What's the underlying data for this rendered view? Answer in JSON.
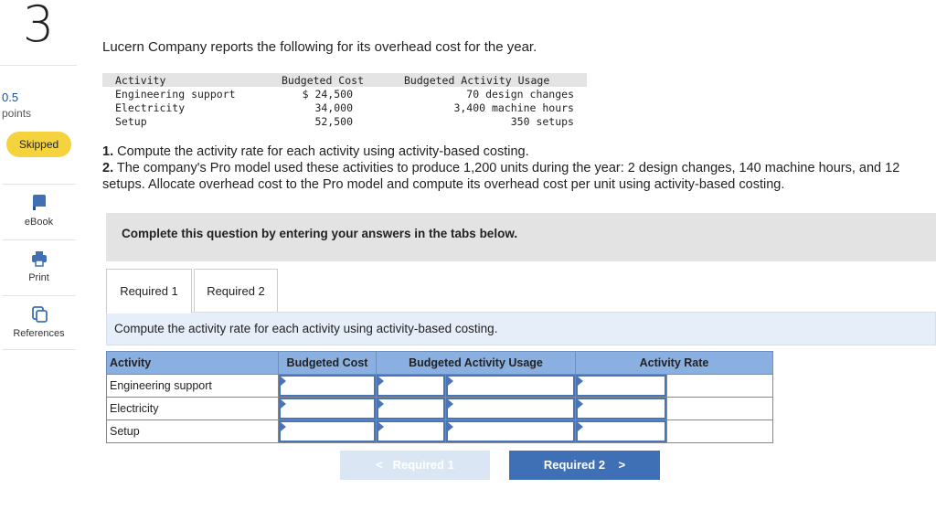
{
  "question": {
    "number": "3",
    "points_value": "0.5",
    "points_label": "points",
    "status": "Skipped"
  },
  "rail": [
    {
      "label": "eBook",
      "icon": "ebook-icon"
    },
    {
      "label": "Print",
      "icon": "print-icon"
    },
    {
      "label": "References",
      "icon": "references-icon"
    }
  ],
  "intro": "Lucern Company reports the following for its overhead cost for the year.",
  "source_table": {
    "headers": [
      "Activity",
      "Budgeted Cost",
      "Budgeted Activity Usage"
    ],
    "rows": [
      [
        "Engineering support",
        "$ 24,500",
        "70 design changes"
      ],
      [
        "Electricity",
        "34,000",
        "3,400 machine hours"
      ],
      [
        "Setup",
        "52,500",
        "350 setups"
      ]
    ]
  },
  "instructions": [
    {
      "num": "1.",
      "text": "Compute the activity rate for each activity using activity-based costing."
    },
    {
      "num": "2.",
      "text": "The company's Pro model used these activities to produce 1,200 units during the year: 2 design changes, 140 machine hours, and 12 setups. Allocate overhead cost to the Pro model and compute its overhead cost per unit using activity-based costing."
    }
  ],
  "banner": "Complete this question by entering your answers in the tabs below.",
  "tabs": [
    "Required 1",
    "Required 2"
  ],
  "panel_heading": "Compute the activity rate for each activity using activity-based costing.",
  "answer_table": {
    "headers": [
      "Activity",
      "Budgeted Cost",
      "Budgeted Activity Usage",
      "Activity Rate"
    ],
    "rows": [
      "Engineering support",
      "Electricity",
      "Setup"
    ]
  },
  "nav": {
    "prev_label": "Required 1",
    "next_label": "Required 2",
    "prev_chevron": "<",
    "next_chevron": ">"
  },
  "colors": {
    "accent": "#3f6fb5",
    "header_fill": "#8ab0e2",
    "skipped_badge": "#f5d33f",
    "panel_fill": "#e6eef9"
  }
}
